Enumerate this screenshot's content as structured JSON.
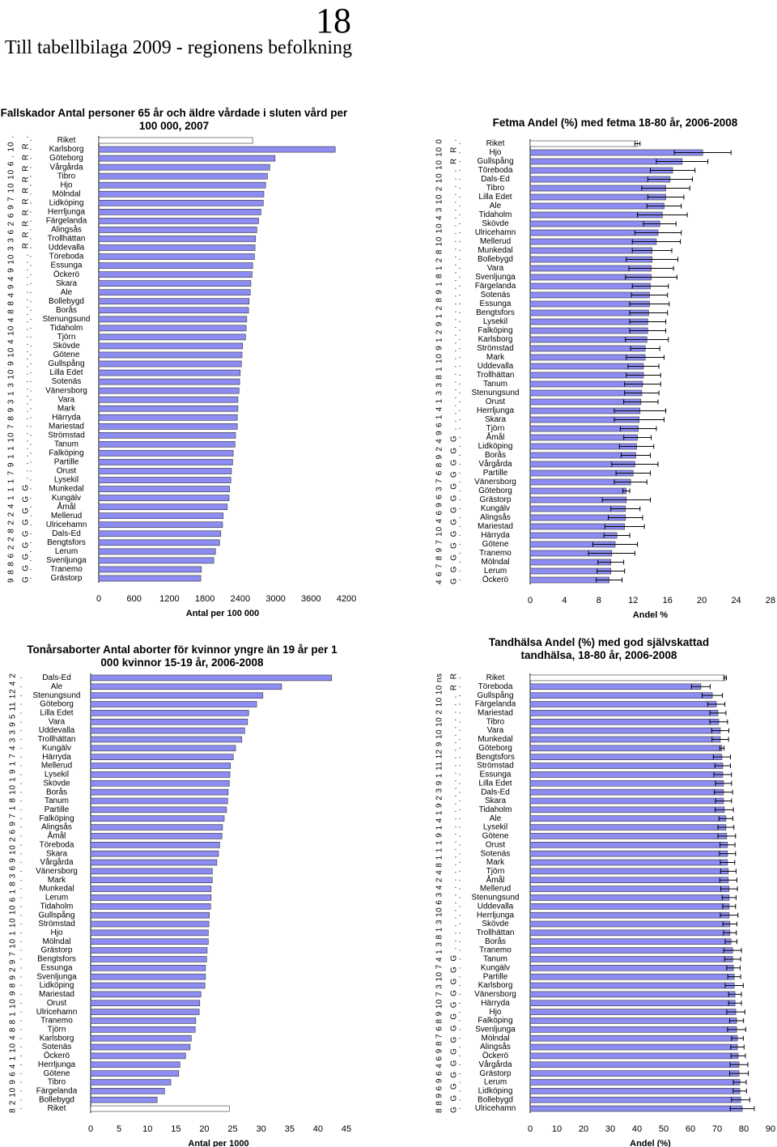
{
  "page_number": "18",
  "heading": "Till tabellbilaga 2009 - regionens befolkning",
  "chart_data": [
    {
      "type": "bar",
      "title": "Fallskador Antal personer 65 år och äldre vårdade i sluten vård per 100 000, 2007",
      "x_label": "Antal per 100 000",
      "categories": [
        "Riket",
        "Karlsborg",
        "Göteborg",
        "Vårgårda",
        "Tibro",
        "Hjo",
        "Mölndal",
        "Lidköping",
        "Herrljunga",
        "Färgelanda",
        "Alingsås",
        "Trollhättan",
        "Uddevalla",
        "Töreboda",
        "Essunga",
        "Öckerö",
        "Skara",
        "Ale",
        "Bollebygd",
        "Borås",
        "Stenungsund",
        "Tidaholm",
        "Tjörn",
        "Skövde",
        "Götene",
        "Gullspång",
        "Lilla Edet",
        "Sotenäs",
        "Vänersborg",
        "Vara",
        "Mark",
        "Härryda",
        "Mariestad",
        "Strömstad",
        "Tanum",
        "Falköping",
        "Partille",
        "Orust",
        "Lysekil",
        "Munkedal",
        "Kungälv",
        "Åmål",
        "Mellerud",
        "Ulricehamn",
        "Dals-Ed",
        "Bengtsfors",
        "Lerum",
        "Svenljunga",
        "Tranemo",
        "Grästorp"
      ],
      "values": [
        2610,
        4010,
        2990,
        2900,
        2860,
        2830,
        2800,
        2790,
        2750,
        2710,
        2680,
        2660,
        2650,
        2640,
        2610,
        2600,
        2580,
        2570,
        2550,
        2540,
        2510,
        2500,
        2490,
        2440,
        2430,
        2420,
        2400,
        2390,
        2380,
        2360,
        2360,
        2350,
        2350,
        2320,
        2310,
        2280,
        2270,
        2250,
        2240,
        2220,
        2210,
        2180,
        2110,
        2100,
        2070,
        2050,
        1980,
        1950,
        1740,
        1730
      ],
      "color": "#8c8cf2",
      "highlight_index": 0,
      "highlight_color": "#ffffff",
      "xlim": [
        0,
        4200
      ],
      "xticks": [
        0,
        600,
        1200,
        1800,
        2400,
        3000,
        3600,
        4200
      ],
      "side_codes": [
        "9 8 8 6 2 2 8 2 2 4 1 1 1 7 9 1 1 10 7 8 9 3 1 3 10 9 10 4 10 4 8 8 4 9 4 9 10 3 3 6 2 6 9 7 10 10 6 . 10 .",
        "G G G G G G G G G . . . . . . . . . . . . . . . . . . . . . . . . . . . . . . . R R R R R R R R R R ."
      ]
    },
    {
      "type": "bar",
      "title": "Fetma  Andel (%) med fetma 18-80 år, 2006-2008",
      "x_label": "Andel %",
      "categories": [
        "Riket",
        "Hjo",
        "Gullspång",
        "Töreboda",
        "Dals-Ed",
        "Tibro",
        "Lilla Edet",
        "Ale",
        "Tidaholm",
        "Skövde",
        "Ulricehamn",
        "Mellerud",
        "Munkedal",
        "Bollebygd",
        "Vara",
        "Svenljunga",
        "Färgelanda",
        "Sotenäs",
        "Essunga",
        "Bengtsfors",
        "Lysekil",
        "Falköping",
        "Karlsborg",
        "Strömstad",
        "Mark",
        "Uddevalla",
        "Trollhättan",
        "Tanum",
        "Stenungsund",
        "Orust",
        "Herrljunga",
        "Skara",
        "Tjörn",
        "Åmål",
        "Lidköping",
        "Borås",
        "Vårgårda",
        "Partille",
        "Vänersborg",
        "Göteborg",
        "Grästorp",
        "Kungälv",
        "Alingsås",
        "Mariestad",
        "Härryda",
        "Götene",
        "Tranemo",
        "Mölndal",
        "Lerum",
        "Öckerö"
      ],
      "values": [
        12.5,
        20.1,
        17.7,
        16.6,
        16.3,
        15.8,
        15.8,
        15.6,
        15.4,
        15.1,
        14.9,
        14.7,
        14.2,
        14.2,
        14.1,
        14.1,
        14.0,
        13.9,
        13.9,
        13.8,
        13.7,
        13.7,
        13.6,
        13.4,
        13.4,
        13.2,
        13.2,
        13.1,
        13.0,
        12.9,
        12.8,
        12.7,
        12.6,
        12.5,
        12.4,
        12.3,
        12.2,
        12.0,
        11.7,
        11.2,
        11.2,
        11.1,
        11.1,
        11.0,
        10.1,
        9.9,
        9.5,
        9.4,
        9.4,
        9.2
      ],
      "errors": [
        0.3,
        3.3,
        3.0,
        2.6,
        2.6,
        2.8,
        2.1,
        2.0,
        2.9,
        1.9,
        2.7,
        2.8,
        2.3,
        3.0,
        2.6,
        3.0,
        2.1,
        2.1,
        2.3,
        2.2,
        2.1,
        2.1,
        2.5,
        1.7,
        2.2,
        1.8,
        2.0,
        2.1,
        2.0,
        2.0,
        3.0,
        2.9,
        2.1,
        1.6,
        2.0,
        1.7,
        2.7,
        2.0,
        1.9,
        0.4,
        2.8,
        1.7,
        2.0,
        2.3,
        1.5,
        2.6,
        2.7,
        1.5,
        1.6,
        1.5
      ],
      "color": "#8c8cf2",
      "highlight_index": 0,
      "highlight_color": "#ffffff",
      "xlim": [
        0,
        28
      ],
      "xticks": [
        0,
        4,
        8,
        12,
        16,
        20,
        24,
        28
      ],
      "side_codes": [
        "4 6 7 8 9 7 10 4 6 9 6 3 7 6 8 9 2 4 9 6 1 4 1 3 3 8 1 10 9 1 2 9 1 2 8 9 1 8 1 2 8 10 10 4 3 10 2 10 10 10 0",
        "G G G G G G G G G G G G G . . . . . . . . . . . . . . . . . . . . . . . . . . . . . . . . . . R R ."
      ]
    },
    {
      "type": "bar",
      "title": "Tonårsaborter Antal aborter för kvinnor yngre än 19 år per 1 000 kvinnor 15-19 år, 2006-2008",
      "x_label": "Antal per 1000",
      "categories": [
        "Dals-Ed",
        "Ale",
        "Stenungsund",
        "Göteborg",
        "Lilla Edet",
        "Vara",
        "Uddevalla",
        "Trollhättan",
        "Kungälv",
        "Härryda",
        "Mellerud",
        "Lysekil",
        "Skövde",
        "Borås",
        "Tanum",
        "Partille",
        "Falköping",
        "Alingsås",
        "Åmål",
        "Töreboda",
        "Skara",
        "Vårgårda",
        "Vänersborg",
        "Mark",
        "Munkedal",
        "Lerum",
        "Tidaholm",
        "Gullspång",
        "Strömstad",
        "Hjo",
        "Mölndal",
        "Grästorp",
        "Bengtsfors",
        "Essunga",
        "Svenljunga",
        "Lidköping",
        "Mariestad",
        "Orust",
        "Ulricehamn",
        "Tranemo",
        "Tjörn",
        "Karlsborg",
        "Sotenäs",
        "Öckerö",
        "Herrljunga",
        "Götene",
        "Tibro",
        "Färgelanda",
        "Bollebygd",
        "Riket"
      ],
      "values": [
        42.4,
        33.6,
        30.3,
        29.2,
        27.8,
        27.6,
        27.1,
        26.6,
        25.5,
        25.1,
        24.6,
        24.5,
        24.4,
        24.2,
        24.1,
        23.9,
        23.5,
        23.2,
        23.1,
        22.7,
        22.5,
        22.2,
        21.4,
        21.4,
        21.2,
        21.2,
        21.1,
        20.9,
        20.8,
        20.7,
        20.7,
        20.5,
        20.4,
        20.2,
        20.2,
        20.1,
        19.4,
        19.2,
        19.1,
        18.5,
        18.4,
        17.7,
        17.5,
        16.7,
        15.7,
        15.5,
        14.1,
        13.0,
        11.7,
        24.4
      ],
      "color": "#8c8cf2",
      "highlight_index": 49,
      "highlight_color": "#ffffff",
      "xlim": [
        0,
        45
      ],
      "xticks": [
        0,
        5,
        10,
        15,
        20,
        25,
        30,
        35,
        40,
        45
      ],
      "side_codes": [
        "8 2 10 9 6 4 1 10 4 8 8 1 10 9 8 9 2 9 7 10 1 10 10 6 1 8 3 6 9 10 2 6 9 7 1 8 10 1 9 1 7 4 3 3 9 5 11 12 4 2"
      ]
    },
    {
      "type": "bar",
      "title": "Tandhälsa Andel (%) med god självskattad tandhälsa, 18-80 år, 2006-2008",
      "x_label": "Andel (%)",
      "categories": [
        "Riket",
        "Töreboda",
        "Gullspång",
        "Färgelanda",
        "Mariestad",
        "Tibro",
        "Vara",
        "Munkedal",
        "Göteborg",
        "Bengtsfors",
        "Strömstad",
        "Essunga",
        "Lilla Edet",
        "Dals-Ed",
        "Skara",
        "Tidaholm",
        "Ale",
        "Lysekil",
        "Götene",
        "Orust",
        "Sotenäs",
        "Mark",
        "Tjörn",
        "Åmål",
        "Mellerud",
        "Stenungsund",
        "Uddevalla",
        "Herrljunga",
        "Skövde",
        "Trollhättan",
        "Borås",
        "Tranemo",
        "Tanum",
        "Kungälv",
        "Partille",
        "Karlsborg",
        "Vänersborg",
        "Härryda",
        "Hjo",
        "Falköping",
        "Svenljunga",
        "Mölndal",
        "Alingsås",
        "Öckerö",
        "Vårgårda",
        "Grästorp",
        "Lerum",
        "Lidköping",
        "Bollebygd",
        "Ulricehamn"
      ],
      "values": [
        73.0,
        63.9,
        68.2,
        69.7,
        70.3,
        70.6,
        71.2,
        71.2,
        71.8,
        71.8,
        72.1,
        72.1,
        72.4,
        72.4,
        72.4,
        72.7,
        73.3,
        73.3,
        73.6,
        73.9,
        73.9,
        73.9,
        74.2,
        74.2,
        74.5,
        74.5,
        74.5,
        74.5,
        74.8,
        74.8,
        75.2,
        75.8,
        75.8,
        76.1,
        76.4,
        76.4,
        76.7,
        76.7,
        77.0,
        77.3,
        77.3,
        77.6,
        77.6,
        77.9,
        78.2,
        78.2,
        78.5,
        78.5,
        78.8,
        79.4
      ],
      "errors": [
        0.5,
        3.5,
        3.8,
        3.2,
        3.0,
        3.3,
        3.2,
        3.1,
        0.8,
        3.2,
        2.9,
        3.3,
        3.0,
        3.4,
        3.0,
        3.4,
        2.6,
        3.0,
        3.3,
        2.8,
        3.0,
        2.7,
        2.9,
        3.2,
        3.1,
        2.6,
        2.4,
        3.3,
        2.6,
        2.4,
        2.2,
        3.3,
        3.0,
        2.5,
        2.4,
        3.4,
        2.4,
        2.4,
        3.4,
        2.6,
        3.4,
        2.2,
        2.5,
        2.7,
        3.3,
        3.5,
        2.4,
        2.5,
        3.4,
        4.5
      ],
      "color": "#8c8cf2",
      "highlight_index": 0,
      "highlight_color": "#ffffff",
      "xlim": [
        0,
        90
      ],
      "xticks": [
        0,
        10,
        20,
        30,
        40,
        50,
        60,
        70,
        80,
        90
      ],
      "side_codes": [
        "8 8 9 6 9 6 4 6 9 8 7 6 8 9 10 7 3 10 7 4 1 3 8 1 3 10 6 3 4 2 4 8 1 1 1 9 1 4 1 9 2 3 9 1 11 12 9 10 10 2 10 10 ns",
        "G G G G G G G G G G G G G G . . . . . . . . . . . . . . . . . . . . . . . . . . . . . . . . . . R R"
      ]
    }
  ]
}
